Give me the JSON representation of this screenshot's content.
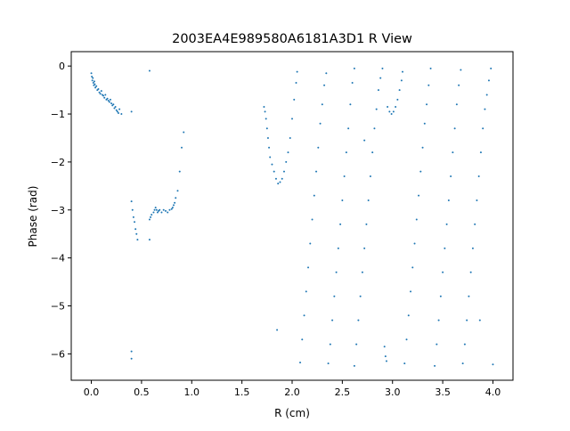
{
  "chart_data": {
    "type": "scatter",
    "title": "2003EA4E989580A6181A3D1 R View",
    "xlabel": "R (cm)",
    "ylabel": "Phase (rad)",
    "xlim": [
      -0.2,
      4.2
    ],
    "ylim": [
      -6.55,
      0.3
    ],
    "xticks": [
      0.0,
      0.5,
      1.0,
      1.5,
      2.0,
      2.5,
      3.0,
      3.5,
      4.0
    ],
    "xtick_labels": [
      "0.0",
      "0.5",
      "1.0",
      "1.5",
      "2.0",
      "2.5",
      "3.0",
      "3.5",
      "4.0"
    ],
    "yticks": [
      0,
      -1,
      -2,
      -3,
      -4,
      -5,
      -6
    ],
    "ytick_labels": [
      "0",
      "−1",
      "−2",
      "−3",
      "−4",
      "−5",
      "−6"
    ],
    "grid": false,
    "marker_color": "#1f77b4",
    "series": [
      {
        "points": [
          [
            0.0,
            -0.15
          ],
          [
            0.005,
            -0.22
          ],
          [
            0.01,
            -0.3
          ],
          [
            0.015,
            -0.25
          ],
          [
            0.02,
            -0.35
          ],
          [
            0.025,
            -0.4
          ],
          [
            0.03,
            -0.32
          ],
          [
            0.035,
            -0.38
          ],
          [
            0.04,
            -0.45
          ],
          [
            0.05,
            -0.42
          ],
          [
            0.06,
            -0.5
          ],
          [
            0.07,
            -0.48
          ],
          [
            0.08,
            -0.55
          ],
          [
            0.09,
            -0.58
          ],
          [
            0.1,
            -0.52
          ],
          [
            0.11,
            -0.6
          ],
          [
            0.12,
            -0.62
          ],
          [
            0.13,
            -0.66
          ],
          [
            0.14,
            -0.6
          ],
          [
            0.15,
            -0.7
          ],
          [
            0.16,
            -0.68
          ],
          [
            0.17,
            -0.72
          ],
          [
            0.18,
            -0.75
          ],
          [
            0.19,
            -0.7
          ],
          [
            0.2,
            -0.78
          ],
          [
            0.21,
            -0.82
          ],
          [
            0.22,
            -0.8
          ],
          [
            0.23,
            -0.88
          ],
          [
            0.24,
            -0.85
          ],
          [
            0.25,
            -0.92
          ],
          [
            0.26,
            -0.95
          ],
          [
            0.27,
            -0.98
          ],
          [
            0.28,
            -0.9
          ],
          [
            0.3,
            -1.0
          ],
          [
            0.4,
            -0.95
          ],
          [
            0.58,
            -0.1
          ],
          [
            0.4,
            -5.95
          ],
          [
            0.4,
            -6.1
          ],
          [
            0.4,
            -2.82
          ],
          [
            0.41,
            -3.0
          ],
          [
            0.42,
            -3.15
          ],
          [
            0.43,
            -3.25
          ],
          [
            0.44,
            -3.4
          ],
          [
            0.45,
            -3.5
          ],
          [
            0.46,
            -3.62
          ],
          [
            0.58,
            -3.62
          ],
          [
            0.58,
            -3.2
          ],
          [
            0.59,
            -3.15
          ],
          [
            0.6,
            -3.1
          ],
          [
            0.62,
            -3.05
          ],
          [
            0.63,
            -3.0
          ],
          [
            0.64,
            -2.95
          ],
          [
            0.65,
            -3.0
          ],
          [
            0.66,
            -3.05
          ],
          [
            0.67,
            -3.02
          ],
          [
            0.68,
            -3.0
          ],
          [
            0.7,
            -3.05
          ],
          [
            0.72,
            -3.0
          ],
          [
            0.74,
            -3.02
          ],
          [
            0.76,
            -3.05
          ],
          [
            0.78,
            -3.0
          ],
          [
            0.8,
            -2.98
          ],
          [
            0.81,
            -2.95
          ],
          [
            0.82,
            -2.9
          ],
          [
            0.83,
            -2.85
          ],
          [
            0.84,
            -2.75
          ],
          [
            0.86,
            -2.6
          ],
          [
            0.88,
            -2.2
          ],
          [
            0.9,
            -1.7
          ],
          [
            0.92,
            -1.38
          ],
          [
            1.72,
            -0.85
          ],
          [
            1.73,
            -0.95
          ],
          [
            1.74,
            -1.1
          ],
          [
            1.75,
            -1.3
          ],
          [
            1.76,
            -1.5
          ],
          [
            1.77,
            -1.7
          ],
          [
            1.78,
            -1.9
          ],
          [
            1.8,
            -2.05
          ],
          [
            1.82,
            -2.2
          ],
          [
            1.84,
            -2.35
          ],
          [
            1.86,
            -2.45
          ],
          [
            1.88,
            -2.42
          ],
          [
            1.9,
            -2.35
          ],
          [
            1.92,
            -2.2
          ],
          [
            1.94,
            -2.0
          ],
          [
            1.96,
            -1.8
          ],
          [
            1.98,
            -1.5
          ],
          [
            2.0,
            -1.1
          ],
          [
            2.02,
            -0.7
          ],
          [
            2.04,
            -0.35
          ],
          [
            2.05,
            -0.12
          ],
          [
            1.85,
            -5.5
          ],
          [
            2.08,
            -6.18
          ],
          [
            2.1,
            -5.7
          ],
          [
            2.12,
            -5.2
          ],
          [
            2.14,
            -4.7
          ],
          [
            2.16,
            -4.2
          ],
          [
            2.18,
            -3.7
          ],
          [
            2.2,
            -3.2
          ],
          [
            2.22,
            -2.7
          ],
          [
            2.24,
            -2.2
          ],
          [
            2.26,
            -1.7
          ],
          [
            2.28,
            -1.2
          ],
          [
            2.3,
            -0.8
          ],
          [
            2.32,
            -0.4
          ],
          [
            2.34,
            -0.15
          ],
          [
            2.36,
            -6.2
          ],
          [
            2.38,
            -5.8
          ],
          [
            2.4,
            -5.3
          ],
          [
            2.42,
            -4.8
          ],
          [
            2.44,
            -4.3
          ],
          [
            2.46,
            -3.8
          ],
          [
            2.48,
            -3.3
          ],
          [
            2.5,
            -2.8
          ],
          [
            2.52,
            -2.3
          ],
          [
            2.54,
            -1.8
          ],
          [
            2.56,
            -1.3
          ],
          [
            2.58,
            -0.8
          ],
          [
            2.6,
            -0.35
          ],
          [
            2.62,
            -0.05
          ],
          [
            2.62,
            -6.25
          ],
          [
            2.64,
            -5.8
          ],
          [
            2.66,
            -5.3
          ],
          [
            2.68,
            -4.8
          ],
          [
            2.7,
            -4.3
          ],
          [
            2.72,
            -3.8
          ],
          [
            2.74,
            -3.3
          ],
          [
            2.76,
            -2.8
          ],
          [
            2.78,
            -2.3
          ],
          [
            2.8,
            -1.8
          ],
          [
            2.82,
            -1.3
          ],
          [
            2.84,
            -0.9
          ],
          [
            2.86,
            -0.5
          ],
          [
            2.88,
            -0.25
          ],
          [
            2.9,
            -0.05
          ],
          [
            2.72,
            -1.55
          ],
          [
            2.92,
            -5.85
          ],
          [
            2.93,
            -6.05
          ],
          [
            2.94,
            -6.15
          ],
          [
            2.95,
            -0.85
          ],
          [
            2.97,
            -0.95
          ],
          [
            2.99,
            -1.0
          ],
          [
            3.01,
            -0.95
          ],
          [
            3.03,
            -0.85
          ],
          [
            3.05,
            -0.7
          ],
          [
            3.07,
            -0.5
          ],
          [
            3.09,
            -0.3
          ],
          [
            3.1,
            -0.12
          ],
          [
            3.12,
            -6.2
          ],
          [
            3.14,
            -5.7
          ],
          [
            3.16,
            -5.2
          ],
          [
            3.18,
            -4.7
          ],
          [
            3.2,
            -4.2
          ],
          [
            3.22,
            -3.7
          ],
          [
            3.24,
            -3.2
          ],
          [
            3.26,
            -2.7
          ],
          [
            3.28,
            -2.2
          ],
          [
            3.3,
            -1.7
          ],
          [
            3.32,
            -1.2
          ],
          [
            3.34,
            -0.8
          ],
          [
            3.36,
            -0.4
          ],
          [
            3.38,
            -0.05
          ],
          [
            3.42,
            -6.25
          ],
          [
            3.44,
            -5.8
          ],
          [
            3.46,
            -5.3
          ],
          [
            3.48,
            -4.8
          ],
          [
            3.5,
            -4.3
          ],
          [
            3.52,
            -3.8
          ],
          [
            3.54,
            -3.3
          ],
          [
            3.56,
            -2.8
          ],
          [
            3.58,
            -2.3
          ],
          [
            3.6,
            -1.8
          ],
          [
            3.62,
            -1.3
          ],
          [
            3.64,
            -0.8
          ],
          [
            3.66,
            -0.4
          ],
          [
            3.68,
            -0.08
          ],
          [
            3.7,
            -6.2
          ],
          [
            3.72,
            -5.8
          ],
          [
            3.74,
            -5.3
          ],
          [
            3.76,
            -4.8
          ],
          [
            3.78,
            -4.3
          ],
          [
            3.8,
            -3.8
          ],
          [
            3.82,
            -3.3
          ],
          [
            3.84,
            -2.8
          ],
          [
            3.86,
            -2.3
          ],
          [
            3.88,
            -1.8
          ],
          [
            3.9,
            -1.3
          ],
          [
            3.92,
            -0.9
          ],
          [
            3.94,
            -0.6
          ],
          [
            3.96,
            -0.3
          ],
          [
            3.98,
            -0.05
          ],
          [
            3.87,
            -5.3
          ],
          [
            4.0,
            -6.22
          ]
        ]
      }
    ]
  }
}
